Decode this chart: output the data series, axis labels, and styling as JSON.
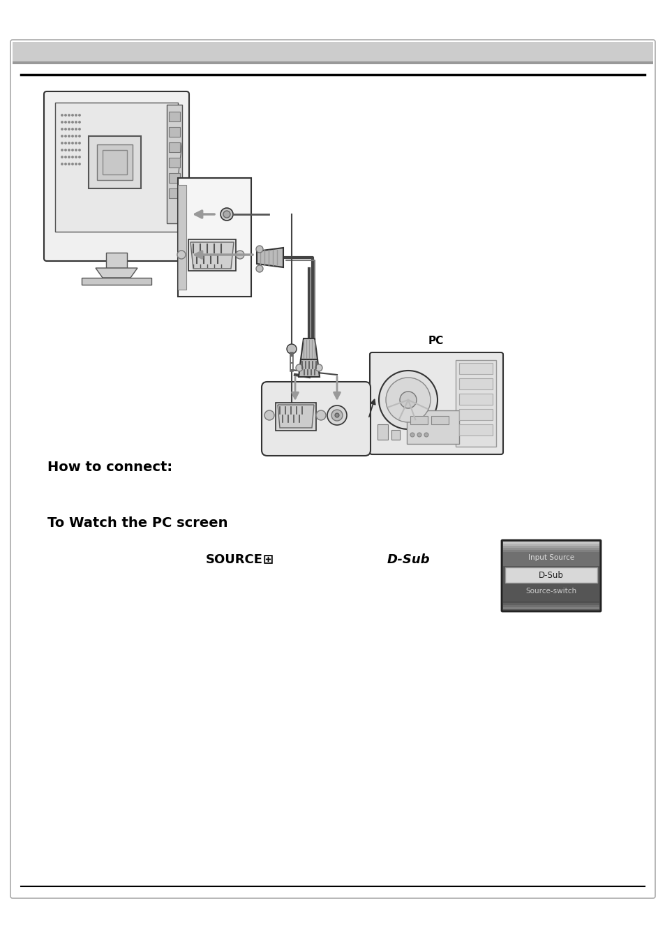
{
  "page_bg": "#ffffff",
  "border_color": "#aaaaaa",
  "header_bg": "#cccccc",
  "header_dark": "#999999",
  "top_rule_color": "#000000",
  "how_to_connect": "How to connect:",
  "to_watch": "To Watch the PC screen",
  "source_text": "SOURCE",
  "source_symbol": "⊞",
  "dsub_text": "D-Sub",
  "pc_text": "PC",
  "input_source_text": "Input Source",
  "dsub_menu_text": "D-Sub",
  "source_switch_text": "Source-switch",
  "line_color": "#333333",
  "light_gray": "#d8d8d8",
  "med_gray": "#aaaaaa",
  "dark_gray": "#666666",
  "arrow_gray": "#999999"
}
